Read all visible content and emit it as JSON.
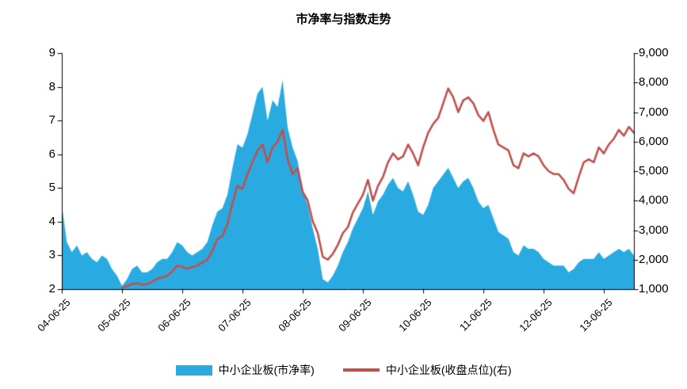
{
  "title": "市净率与指数走势",
  "chart_data": {
    "type": "combo",
    "title": "市净率与指数走势",
    "points_start": "2004-06",
    "points_interval": "monthly",
    "x_tick_labels": [
      "04-06-25",
      "05-06-25",
      "06-06-25",
      "07-06-25",
      "08-06-25",
      "09-06-25",
      "10-06-25",
      "11-06-25",
      "12-06-25",
      "13-06-25"
    ],
    "x_tick_indices": [
      0,
      12,
      24,
      36,
      48,
      60,
      72,
      84,
      96,
      108
    ],
    "left_axis": {
      "min": 2,
      "max": 9,
      "tick_labels": [
        "9",
        "8",
        "7",
        "6",
        "5",
        "4",
        "3",
        "2"
      ]
    },
    "right_axis": {
      "min": 1000,
      "max": 9000,
      "tick_labels": [
        "9,000",
        "8,000",
        "7,000",
        "6,000",
        "5,000",
        "4,000",
        "3,000",
        "2,000",
        "1,000"
      ]
    },
    "grid": false,
    "legend_position": "bottom",
    "series": [
      {
        "name": "中小企业板(市净率)",
        "type": "area",
        "axis": "left",
        "color": "#29ABE2",
        "values": [
          4.5,
          3.4,
          3.1,
          3.3,
          3.0,
          3.1,
          2.9,
          2.8,
          3.0,
          2.9,
          2.6,
          2.4,
          2.1,
          2.3,
          2.6,
          2.7,
          2.5,
          2.5,
          2.6,
          2.8,
          2.9,
          2.9,
          3.1,
          3.4,
          3.3,
          3.1,
          3.0,
          3.1,
          3.2,
          3.4,
          3.9,
          4.3,
          4.4,
          4.8,
          5.6,
          6.3,
          6.2,
          6.6,
          7.2,
          7.8,
          8.0,
          7.0,
          7.6,
          7.4,
          8.2,
          6.8,
          6.2,
          5.8,
          4.9,
          4.5,
          3.8,
          3.2,
          2.3,
          2.2,
          2.4,
          2.7,
          3.1,
          3.4,
          3.8,
          4.1,
          4.4,
          4.9,
          4.2,
          4.6,
          4.8,
          5.1,
          5.3,
          5.0,
          4.9,
          5.2,
          4.8,
          4.3,
          4.2,
          4.5,
          5.0,
          5.2,
          5.4,
          5.6,
          5.3,
          5.0,
          5.2,
          5.3,
          5.0,
          4.6,
          4.4,
          4.5,
          4.1,
          3.7,
          3.6,
          3.5,
          3.1,
          3.0,
          3.3,
          3.2,
          3.2,
          3.1,
          2.9,
          2.8,
          2.7,
          2.7,
          2.7,
          2.5,
          2.6,
          2.8,
          2.9,
          2.9,
          2.9,
          3.1,
          2.9,
          3.0,
          3.1,
          3.2,
          3.1,
          3.2,
          3.0
        ]
      },
      {
        "name": "中小企业板(收盘点位)(右)",
        "type": "line",
        "axis": "right",
        "color": "#C0504D",
        "values": [
          null,
          null,
          null,
          null,
          null,
          null,
          null,
          null,
          null,
          null,
          null,
          null,
          1050,
          1100,
          1180,
          1200,
          1150,
          1170,
          1250,
          1350,
          1400,
          1450,
          1600,
          1800,
          1750,
          1700,
          1750,
          1800,
          1900,
          2000,
          2300,
          2700,
          2800,
          3200,
          3900,
          4500,
          4400,
          4900,
          5300,
          5700,
          5900,
          5300,
          5800,
          6000,
          6400,
          5400,
          4900,
          5100,
          4300,
          4000,
          3300,
          2900,
          2100,
          2000,
          2200,
          2500,
          2900,
          3100,
          3600,
          3900,
          4200,
          4700,
          4000,
          4500,
          4800,
          5300,
          5600,
          5400,
          5500,
          5900,
          5600,
          5200,
          5800,
          6300,
          6600,
          6800,
          7300,
          7800,
          7500,
          7000,
          7400,
          7500,
          7300,
          6900,
          6700,
          7000,
          6400,
          5900,
          5800,
          5700,
          5200,
          5100,
          5600,
          5500,
          5600,
          5500,
          5200,
          5000,
          4900,
          4900,
          4700,
          4400,
          4250,
          4800,
          5300,
          5400,
          5300,
          5800,
          5600,
          5900,
          6100,
          6400,
          6200,
          6500,
          6300
        ]
      }
    ]
  }
}
